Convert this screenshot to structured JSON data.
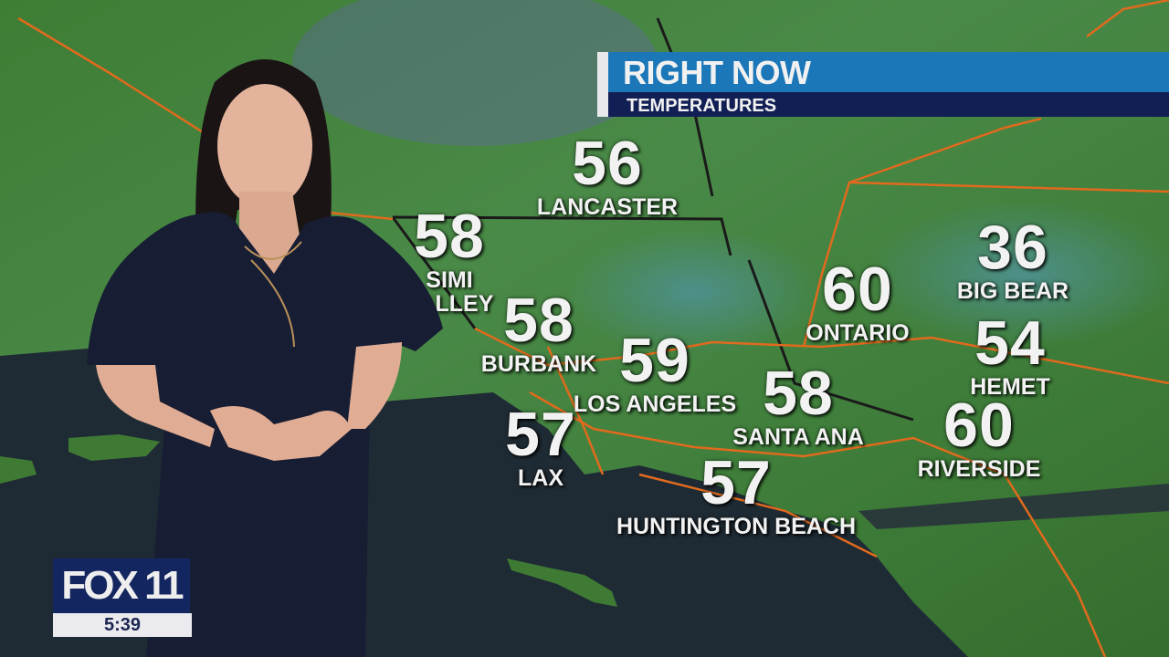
{
  "banner": {
    "title": "RIGHT NOW",
    "subtitle": "TEMPERATURES"
  },
  "logo": {
    "brand": "FOX 11",
    "time": "5:39"
  },
  "colors": {
    "banner_top": "#1b77b8",
    "banner_bottom": "#121f55",
    "logo_bg": "#142660",
    "land": "#3f7a2e",
    "ocean": "#1f2b34",
    "roads": "#e06a1e"
  },
  "cities": [
    {
      "name": "LANCASTER",
      "temp": "56"
    },
    {
      "name_line1": "SIMI",
      "name_line2": "VALLEY",
      "temp": "58"
    },
    {
      "name": "BURBANK",
      "temp": "58"
    },
    {
      "name": "LOS ANGELES",
      "temp": "59"
    },
    {
      "name": "LAX",
      "temp": "57"
    },
    {
      "name": "HUNTINGTON BEACH",
      "temp": "57"
    },
    {
      "name": "SANTA ANA",
      "temp": "58"
    },
    {
      "name": "ONTARIO",
      "temp": "60"
    },
    {
      "name": "BIG BEAR",
      "temp": "36"
    },
    {
      "name": "HEMET",
      "temp": "54"
    },
    {
      "name": "RIVERSIDE",
      "temp": "60"
    }
  ]
}
